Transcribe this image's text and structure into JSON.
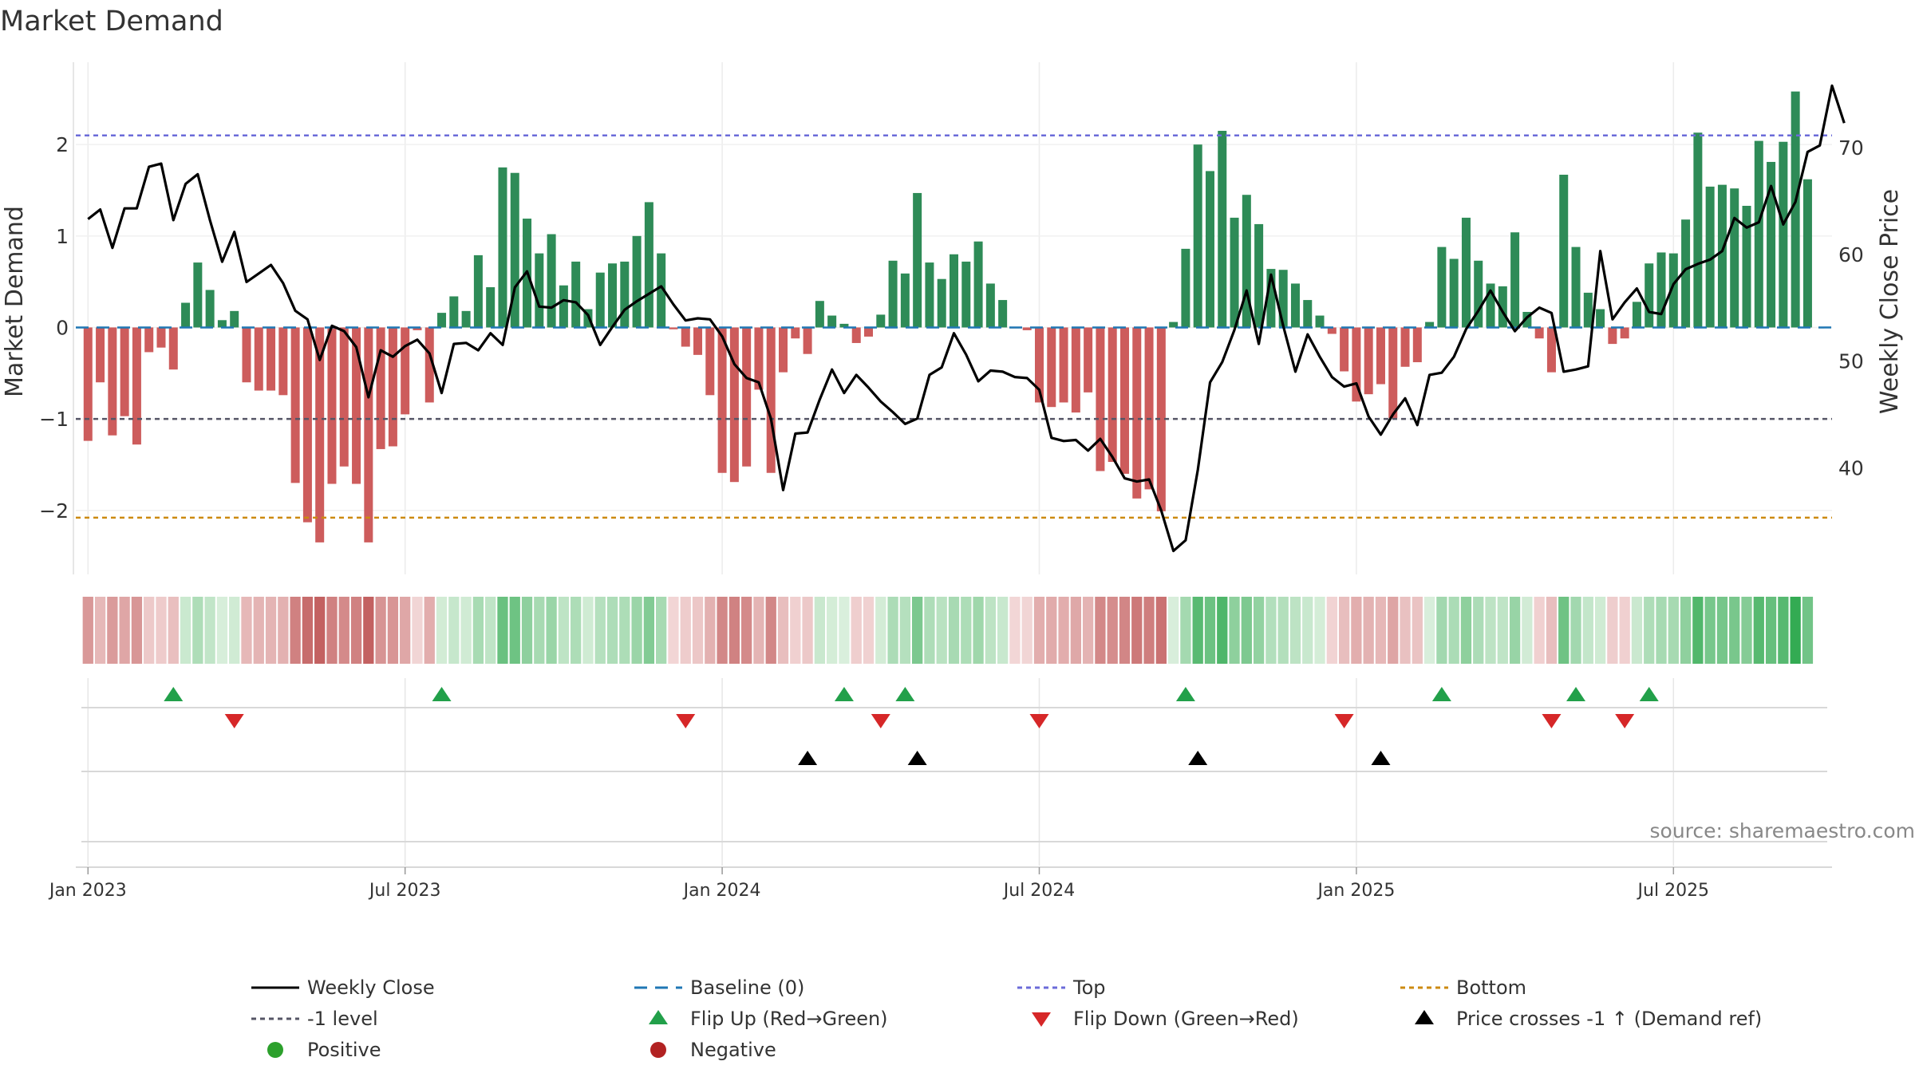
{
  "chart_data": {
    "type": "bar",
    "title": "Market Demand",
    "ylabel": "Market Demand",
    "y2label": "Weekly Close Price",
    "ylim": [
      -2.7,
      2.9
    ],
    "y2lim": [
      30,
      78
    ],
    "y_ticks": [
      -2,
      -1,
      0,
      1,
      2
    ],
    "y_tick_labels": [
      "−2",
      "−1",
      "0",
      "1",
      "2"
    ],
    "y2_ticks": [
      40,
      50,
      60,
      70
    ],
    "y2_tick_labels": [
      "40",
      "50",
      "60",
      "70"
    ],
    "x_ticks": [
      0,
      26,
      52,
      78,
      104,
      130
    ],
    "x_tick_labels": [
      "Jan 2023",
      "Jul 2023",
      "Jan 2024",
      "Jul 2024",
      "Jan 2025",
      "Jul 2025"
    ],
    "x_start_index": -1,
    "x_end_index": 143,
    "levels": {
      "top": 2.1,
      "bottom": -2.08,
      "minus_one": -1.0,
      "baseline": 0
    },
    "demand": [
      -1.24,
      -0.6,
      -1.18,
      -0.97,
      -1.28,
      -0.27,
      -0.22,
      -0.46,
      0.27,
      0.71,
      0.41,
      0.08,
      0.18,
      -0.6,
      -0.69,
      -0.69,
      -0.74,
      -1.7,
      -2.13,
      -2.35,
      -1.71,
      -1.52,
      -1.71,
      -2.35,
      -1.33,
      -1.3,
      -0.95,
      -0.03,
      -0.82,
      0.16,
      0.34,
      0.18,
      0.79,
      0.44,
      1.75,
      1.69,
      1.19,
      0.81,
      1.02,
      0.46,
      0.72,
      0.2,
      0.6,
      0.7,
      0.72,
      1.0,
      1.37,
      0.81,
      -0.02,
      -0.21,
      -0.3,
      -0.74,
      -1.59,
      -1.69,
      -1.52,
      -0.68,
      -1.59,
      -0.49,
      -0.12,
      -0.29,
      0.29,
      0.13,
      0.04,
      -0.17,
      -0.1,
      0.14,
      0.73,
      0.59,
      1.47,
      0.71,
      0.53,
      0.8,
      0.72,
      0.94,
      0.48,
      0.3,
      -0.01,
      -0.03,
      -0.82,
      -0.87,
      -0.82,
      -0.93,
      -0.71,
      -1.57,
      -1.47,
      -1.6,
      -1.87,
      -1.77,
      -2.01,
      0.06,
      0.86,
      2.0,
      1.71,
      2.15,
      1.2,
      1.45,
      1.13,
      0.64,
      0.63,
      0.48,
      0.3,
      0.13,
      -0.07,
      -0.48,
      -0.81,
      -0.73,
      -0.62,
      -0.99,
      -0.43,
      -0.38,
      0.06,
      0.88,
      0.75,
      1.2,
      0.73,
      0.48,
      0.45,
      1.04,
      0.17,
      -0.12,
      -0.49,
      1.67,
      0.88,
      0.38,
      0.2,
      -0.18,
      -0.12,
      0.28,
      0.7,
      0.82,
      0.81,
      1.18,
      2.13,
      1.54,
      1.56,
      1.52,
      1.33,
      2.04,
      1.81,
      2.03,
      2.58,
      1.62
    ],
    "price": [
      63.3,
      64.2,
      60.6,
      64.3,
      64.3,
      68.2,
      68.5,
      63.2,
      66.6,
      67.5,
      63.2,
      59.3,
      62.1,
      57.4,
      58.2,
      59.0,
      57.3,
      54.7,
      53.9,
      50.1,
      53.3,
      52.8,
      51.3,
      46.6,
      51.0,
      50.4,
      51.4,
      52.0,
      50.7,
      47.0,
      51.6,
      51.7,
      51.0,
      52.6,
      51.5,
      56.9,
      58.4,
      55.1,
      55.0,
      55.7,
      55.5,
      54.3,
      51.5,
      53.2,
      54.8,
      55.6,
      56.3,
      57.0,
      55.3,
      53.8,
      54.0,
      53.9,
      52.3,
      49.7,
      48.4,
      48.0,
      44.6,
      37.9,
      43.2,
      43.3,
      46.4,
      49.2,
      47.0,
      48.7,
      47.5,
      46.2,
      45.2,
      44.1,
      44.6,
      48.7,
      49.4,
      52.6,
      50.6,
      48.1,
      49.1,
      49.0,
      48.5,
      48.4,
      47.3,
      42.8,
      42.5,
      42.6,
      41.6,
      42.7,
      41.0,
      39.0,
      38.7,
      38.9,
      36.0,
      32.2,
      33.2,
      39.8,
      48.0,
      49.9,
      52.9,
      56.6,
      51.6,
      58.1,
      53.3,
      49.0,
      52.5,
      50.4,
      48.5,
      47.6,
      47.9,
      44.8,
      43.1,
      45.0,
      46.5,
      44.0,
      48.7,
      48.9,
      50.4,
      53.0,
      54.7,
      56.6,
      54.6,
      52.8,
      54.1,
      55.0,
      54.5,
      49.0,
      49.2,
      49.5,
      60.3,
      53.9,
      55.5,
      56.8,
      54.6,
      54.4,
      57.2,
      58.6,
      59.1,
      59.5,
      60.3,
      63.4,
      62.5,
      63.0,
      66.4,
      62.8,
      64.9,
      69.6,
      70.2,
      75.8,
      72.3
    ],
    "flip_up_weeks": [
      7,
      29,
      62,
      67,
      90,
      111,
      122,
      128
    ],
    "flip_down_weeks": [
      12,
      49,
      65,
      78,
      103,
      120,
      126
    ],
    "price_cross_weeks": [
      59,
      68,
      91,
      106
    ],
    "legend": [
      {
        "label": "Weekly Close",
        "symbol": "line-solid",
        "color": "#000000"
      },
      {
        "label": "Baseline (0)",
        "symbol": "line-dashed",
        "color": "#1f77b4"
      },
      {
        "label": "Top",
        "symbol": "line-dotted",
        "color": "#6b6bd9"
      },
      {
        "label": "Bottom",
        "symbol": "line-dotted",
        "color": "#cc8a10"
      },
      {
        "label": "-1 level",
        "symbol": "line-dotted",
        "color": "#555566"
      },
      {
        "label": "Flip Up (Red→Green)",
        "symbol": "triangle-up",
        "color": "#22a04a"
      },
      {
        "label": "Flip Down (Green→Red)",
        "symbol": "triangle-down",
        "color": "#d62728"
      },
      {
        "label": "Price crosses -1 ↑ (Demand ref)",
        "symbol": "triangle-up",
        "color": "#000000"
      },
      {
        "label": "Positive",
        "symbol": "circle",
        "color": "#2ca02c"
      },
      {
        "label": "Negative",
        "symbol": "circle",
        "color": "#b22222"
      }
    ],
    "source": "source: sharemaestro.com"
  },
  "colors": {
    "positive_bar": "#2e8b57",
    "negative_bar": "#cd5c5c",
    "price_line": "#000000",
    "baseline": "#1f77b4",
    "top": "#6b6bd9",
    "bottom": "#cc8a10",
    "minus_one": "#555566",
    "flip_up": "#22a04a",
    "flip_down": "#d62728",
    "cross": "#000000"
  }
}
